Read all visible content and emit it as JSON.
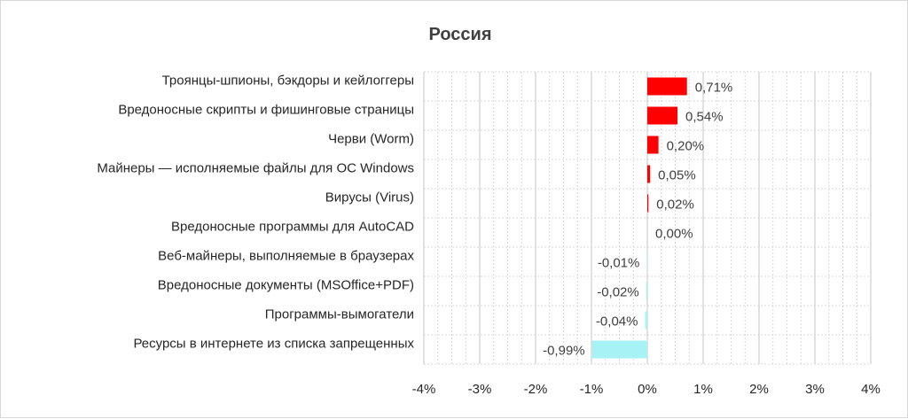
{
  "chart_data": {
    "type": "bar",
    "orientation": "horizontal",
    "title": "Россия",
    "categories": [
      "Троянцы-шпионы, бэкдоры и кейлоггеры",
      "Вредоносные скрипты и фишинговые страницы",
      "Черви (Worm)",
      "Майнеры — исполняемые файлы для ОС Windows",
      "Вирусы (Virus)",
      "Вредоносные программы для AutoCAD",
      "Веб-майнеры, выполняемые в браузерах",
      "Вредоносные документы (MSOffice+PDF)",
      "Программы-вымогатели",
      "Ресурсы в интернете из списка запрещенных"
    ],
    "values": [
      0.71,
      0.54,
      0.2,
      0.05,
      0.02,
      0.0,
      -0.01,
      -0.02,
      -0.04,
      -0.99
    ],
    "data_labels": [
      "0,71%",
      "0,54%",
      "0,20%",
      "0,05%",
      "0,02%",
      "0,00%",
      "-0,01%",
      "-0,02%",
      "-0,04%",
      "-0,99%"
    ],
    "xlim": [
      -4,
      4
    ],
    "xticks": [
      -4,
      -3,
      -2,
      -1,
      0,
      1,
      2,
      3,
      4
    ],
    "xtick_labels": [
      "-4%",
      "-3%",
      "-2%",
      "-1%",
      "0%",
      "1%",
      "2%",
      "3%",
      "4%"
    ],
    "colors": {
      "positive": "#ff0000",
      "negative": "#a6f2f5",
      "grid": "#d9d9d9"
    },
    "grid": true,
    "legend": "none"
  }
}
